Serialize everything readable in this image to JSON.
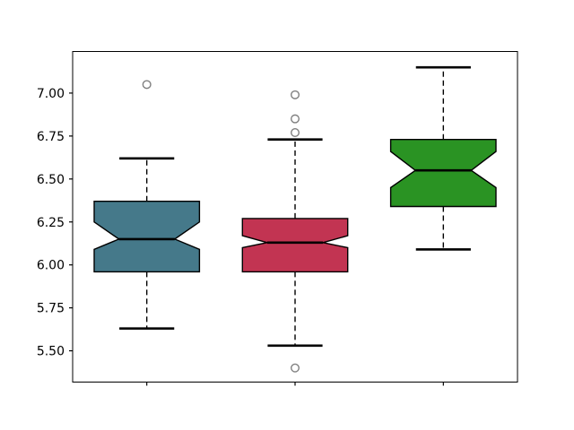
{
  "figure": {
    "background": "#ffffff"
  },
  "chart_data": {
    "type": "boxplot",
    "notched": true,
    "orientation": "vertical",
    "title": "",
    "xlabel": "",
    "ylabel": "",
    "grid": false,
    "xlim": [
      0.5,
      3.5
    ],
    "ylim": [
      5.318,
      7.242
    ],
    "yticks": [
      {
        "value": 5.5,
        "label": "5.50"
      },
      {
        "value": 5.75,
        "label": "5.75"
      },
      {
        "value": 6.0,
        "label": "6.00"
      },
      {
        "value": 6.25,
        "label": "6.25"
      },
      {
        "value": 6.5,
        "label": "6.50"
      },
      {
        "value": 6.75,
        "label": "6.75"
      },
      {
        "value": 7.0,
        "label": "7.00"
      }
    ],
    "xticks": [
      {
        "value": 1,
        "label": ""
      },
      {
        "value": 2,
        "label": ""
      },
      {
        "value": 3,
        "label": ""
      }
    ],
    "box_width": 0.71,
    "cap_width": 0.37,
    "notch_width_ratio": 0.53,
    "boxes": [
      {
        "name": "box-1",
        "position": 1,
        "fill_color": "#45798A",
        "q1": 5.96,
        "median": 6.15,
        "q3": 6.37,
        "whisker_low": 5.63,
        "whisker_high": 6.62,
        "notch_low": 6.09,
        "notch_high": 6.25,
        "fliers": [
          7.05
        ]
      },
      {
        "name": "box-2",
        "position": 2,
        "fill_color": "#C23452",
        "q1": 5.96,
        "median": 6.13,
        "q3": 6.27,
        "whisker_low": 5.53,
        "whisker_high": 6.73,
        "notch_low": 6.1,
        "notch_high": 6.17,
        "fliers": [
          6.99,
          6.85,
          6.77,
          5.4
        ]
      },
      {
        "name": "box-3",
        "position": 3,
        "fill_color": "#2A9323",
        "q1": 6.34,
        "median": 6.55,
        "q3": 6.73,
        "whisker_low": 6.09,
        "whisker_high": 7.15,
        "notch_low": 6.45,
        "notch_high": 6.66,
        "fliers": []
      }
    ],
    "styles": {
      "box_edge_color": "#000000",
      "median_color": "#000000",
      "whisker_color": "#000000",
      "cap_color": "#000000",
      "flier_edge_color": "#7f7f7f",
      "spine_color": "#000000",
      "tick_color": "#000000",
      "tick_label_color": "#000000"
    }
  }
}
